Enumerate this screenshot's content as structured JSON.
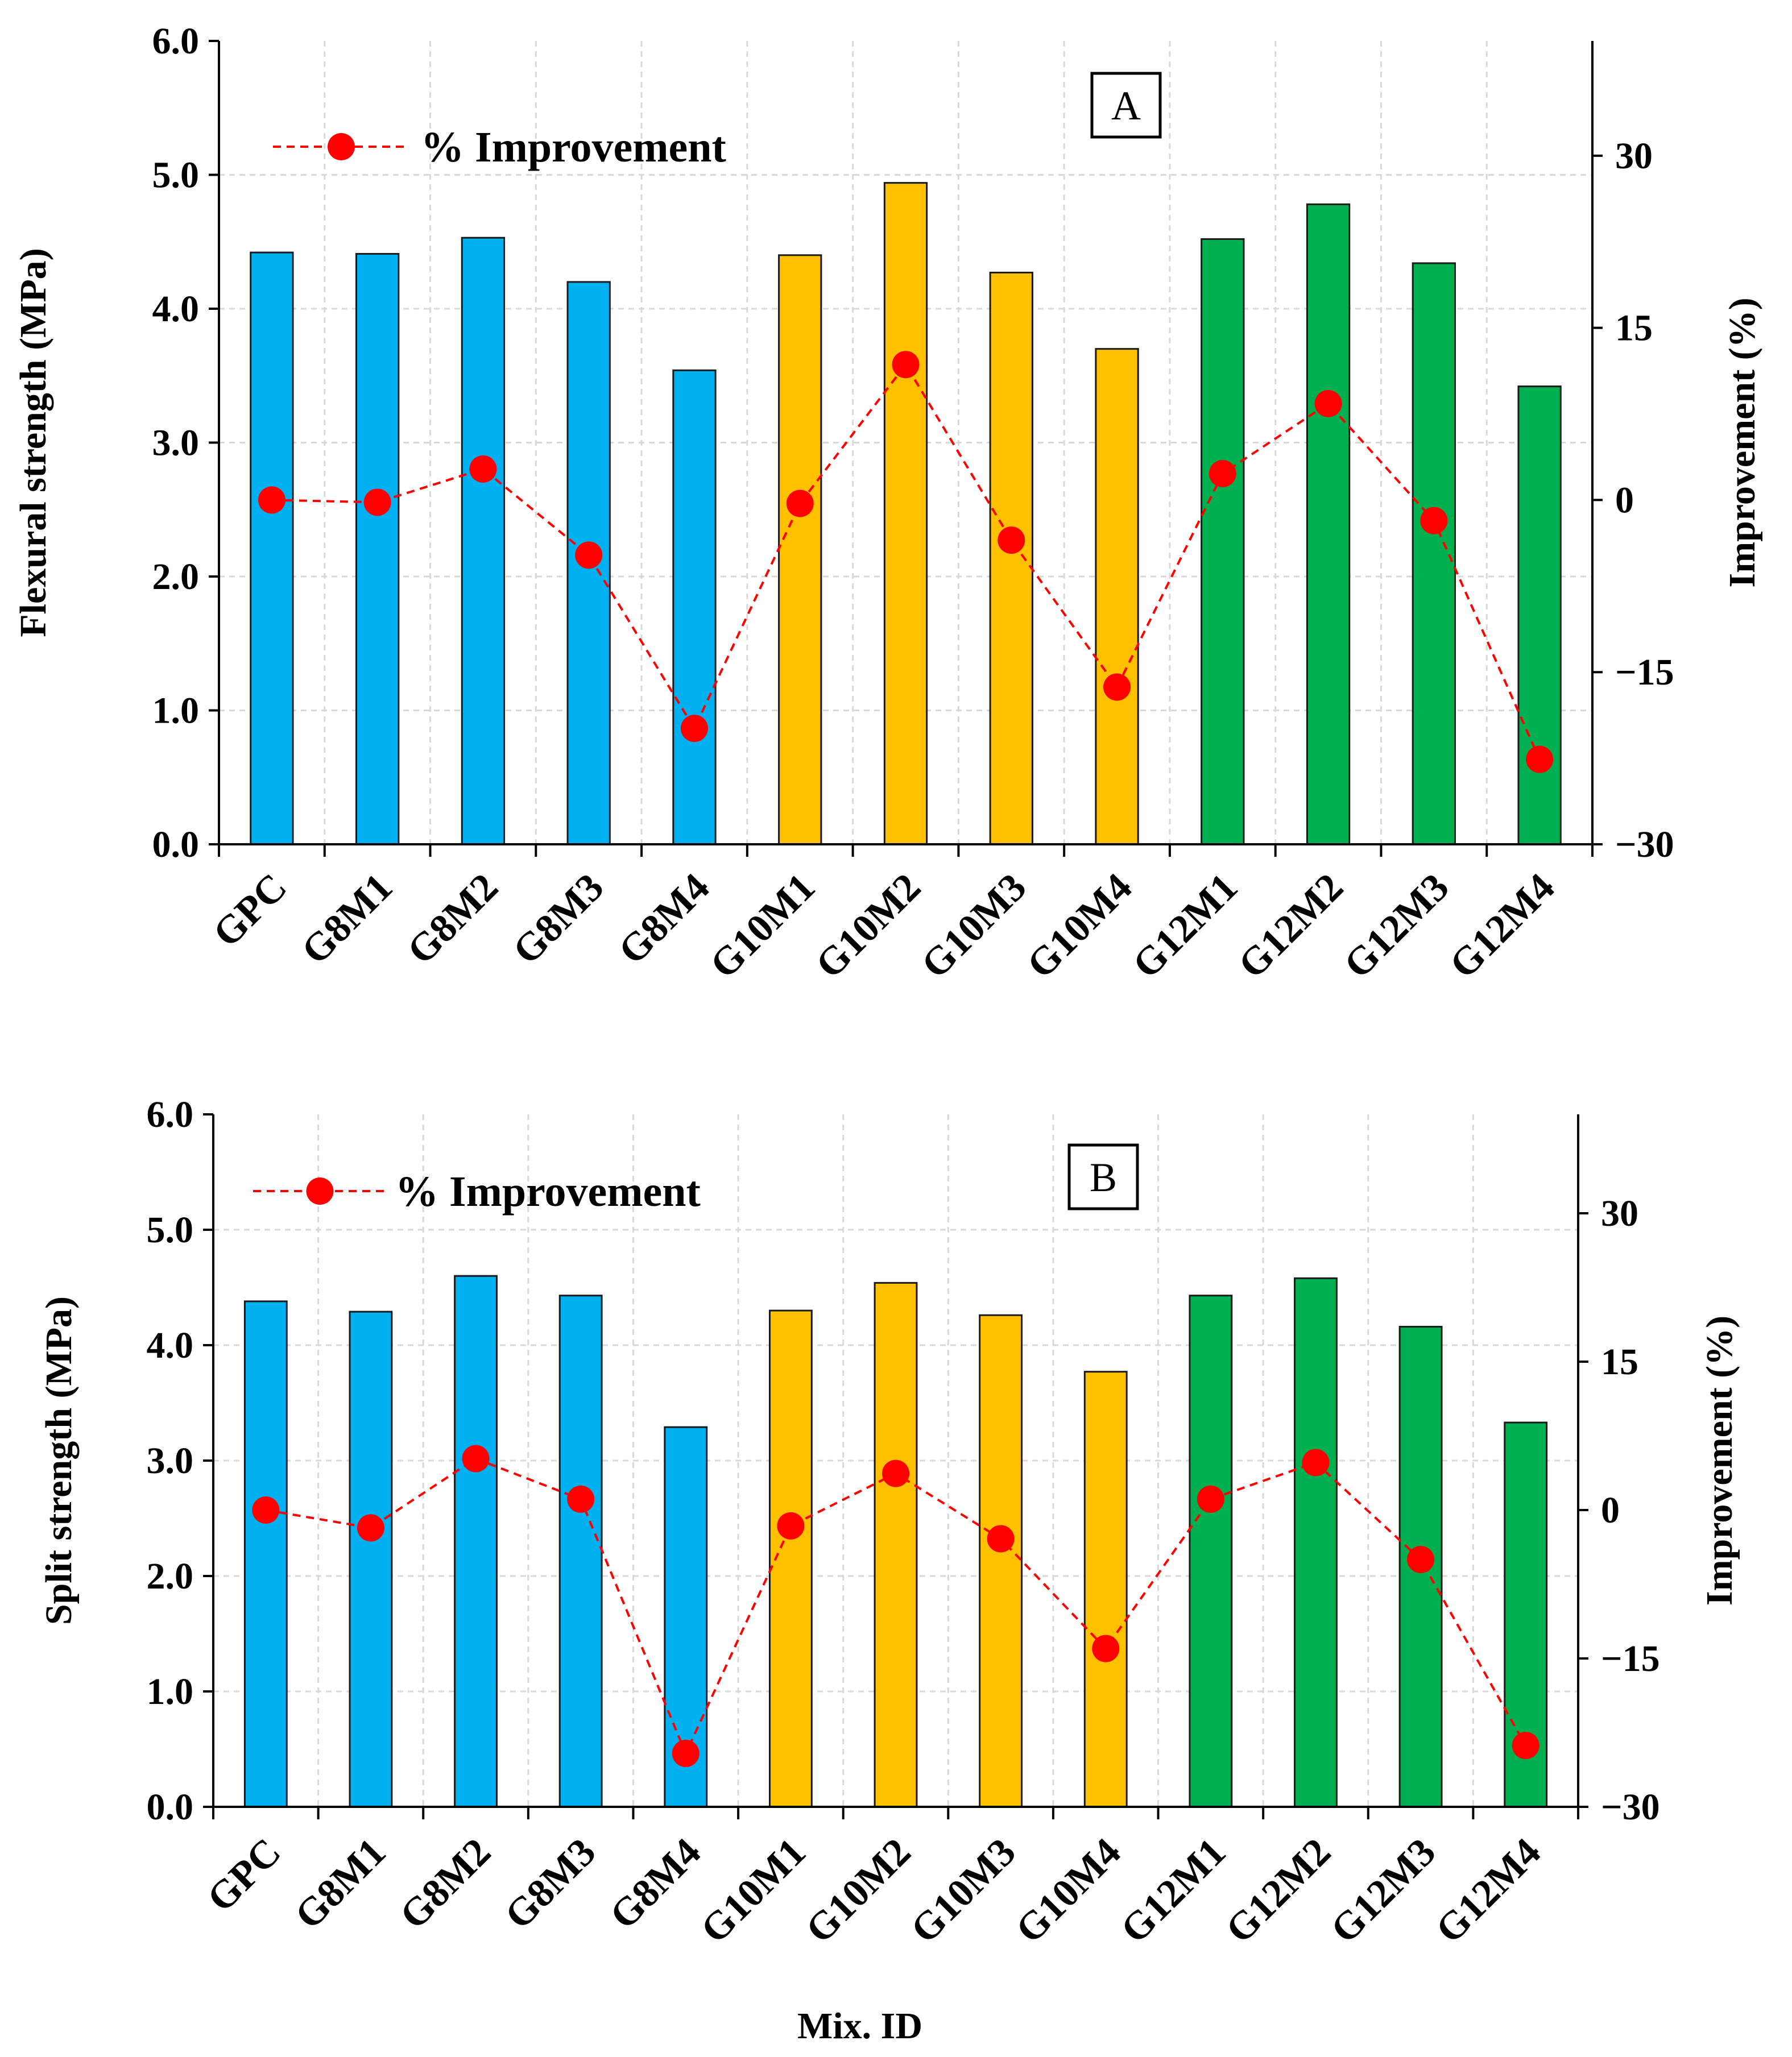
{
  "figure": {
    "x_axis_title": "Mix. ID"
  },
  "chart_data": [
    {
      "type": "bar",
      "panel_label": "A",
      "categories": [
        "GPC",
        "G8M1",
        "G8M2",
        "G8M3",
        "G8M4",
        "G10M1",
        "G10M2",
        "G10M3",
        "G10M4",
        "G12M1",
        "G12M2",
        "G12M3",
        "G12M4"
      ],
      "groups": [
        "blue",
        "blue",
        "blue",
        "blue",
        "blue",
        "yellow",
        "yellow",
        "yellow",
        "yellow",
        "green",
        "green",
        "green",
        "green"
      ],
      "colors": {
        "blue": "#00b0f0",
        "yellow": "#ffc000",
        "green": "#00b050",
        "line": "#ff0000"
      },
      "values": [
        4.42,
        4.41,
        4.53,
        4.2,
        3.54,
        4.4,
        4.94,
        4.27,
        3.7,
        4.52,
        4.78,
        4.34,
        3.42
      ],
      "ylabel": "Flexural strength (MPa)",
      "ylim": [
        0,
        6
      ],
      "yticks": [
        "0.0",
        "1.0",
        "2.0",
        "3.0",
        "4.0",
        "5.0",
        "6.0"
      ],
      "y2label": "Improvement  (%)",
      "y2lim": [
        -30,
        40
      ],
      "y2ticks": [
        "−30",
        "−15",
        "0",
        "15",
        "30"
      ],
      "improvement": [
        0,
        -0.2,
        2.7,
        -4.8,
        -19.9,
        -0.3,
        11.8,
        -3.5,
        -16.3,
        2.3,
        8.4,
        -1.8,
        -22.6
      ],
      "legend": "% Improvement",
      "legend_position": "top-left",
      "grid": true
    },
    {
      "type": "bar",
      "panel_label": "B",
      "categories": [
        "GPC",
        "G8M1",
        "G8M2",
        "G8M3",
        "G8M4",
        "G10M1",
        "G10M2",
        "G10M3",
        "G10M4",
        "G12M1",
        "G12M2",
        "G12M3",
        "G12M4"
      ],
      "groups": [
        "blue",
        "blue",
        "blue",
        "blue",
        "blue",
        "yellow",
        "yellow",
        "yellow",
        "yellow",
        "green",
        "green",
        "green",
        "green"
      ],
      "colors": {
        "blue": "#00b0f0",
        "yellow": "#ffc000",
        "green": "#00b050",
        "line": "#ff0000"
      },
      "values": [
        4.38,
        4.29,
        4.6,
        4.43,
        3.29,
        4.3,
        4.54,
        4.26,
        3.77,
        4.43,
        4.58,
        4.16,
        3.33
      ],
      "ylabel": "Split strength (MPa)",
      "ylim": [
        0,
        6
      ],
      "yticks": [
        "0.0",
        "1.0",
        "2.0",
        "3.0",
        "4.0",
        "5.0",
        "6.0"
      ],
      "y2label": "Improvement  (%)",
      "y2lim": [
        -30,
        40
      ],
      "y2ticks": [
        "−30",
        "−15",
        "0",
        "15",
        "30"
      ],
      "improvement": [
        0,
        -1.8,
        5.2,
        1.1,
        -24.6,
        -1.6,
        3.7,
        -2.9,
        -14.0,
        1.1,
        4.8,
        -5.0,
        -23.8
      ],
      "legend": "% Improvement",
      "legend_position": "top-left",
      "grid": true
    }
  ]
}
